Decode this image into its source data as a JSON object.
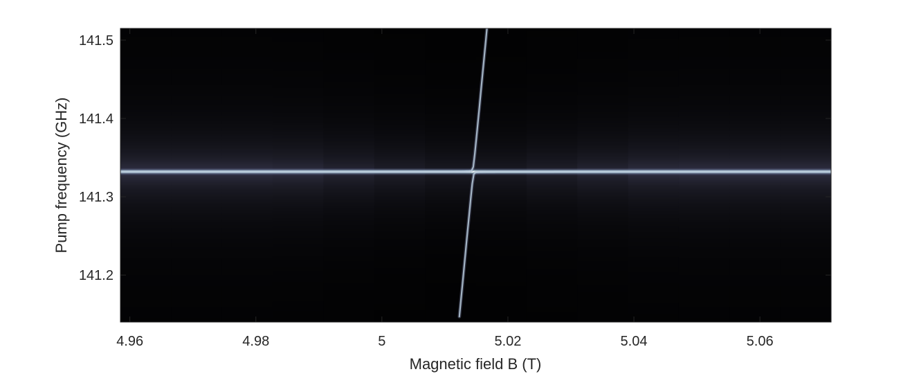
{
  "chart_data": {
    "type": "heatmap",
    "title": "",
    "xlabel": "Magnetic field B (T)",
    "ylabel": "Pump frequency (GHz)",
    "xlim": [
      4.9585,
      5.0713
    ],
    "ylim": [
      141.14,
      141.515
    ],
    "xticks": [
      {
        "value": 4.96,
        "label": "4.96"
      },
      {
        "value": 4.98,
        "label": "4.98"
      },
      {
        "value": 5.0,
        "label": "5"
      },
      {
        "value": 5.02,
        "label": "5.02"
      },
      {
        "value": 5.04,
        "label": "5.04"
      },
      {
        "value": 5.06,
        "label": "5.06"
      }
    ],
    "yticks": [
      {
        "value": 141.2,
        "label": "141.2"
      },
      {
        "value": 141.3,
        "label": "141.3"
      },
      {
        "value": 141.4,
        "label": "141.4"
      },
      {
        "value": 141.5,
        "label": "141.5"
      }
    ],
    "colormap": [
      "#000000",
      "#1c1c26",
      "#3f3f5a",
      "#7c7ea0",
      "#c8e6e4",
      "#ffffff"
    ],
    "cavity_frequency_GHz": 141.332,
    "spin_crossing_B_T": 5.0145,
    "spin_line_slope_GHz_per_T": 84,
    "coupling_g_GHz": 0.006,
    "grid": false,
    "colorbar": false
  }
}
